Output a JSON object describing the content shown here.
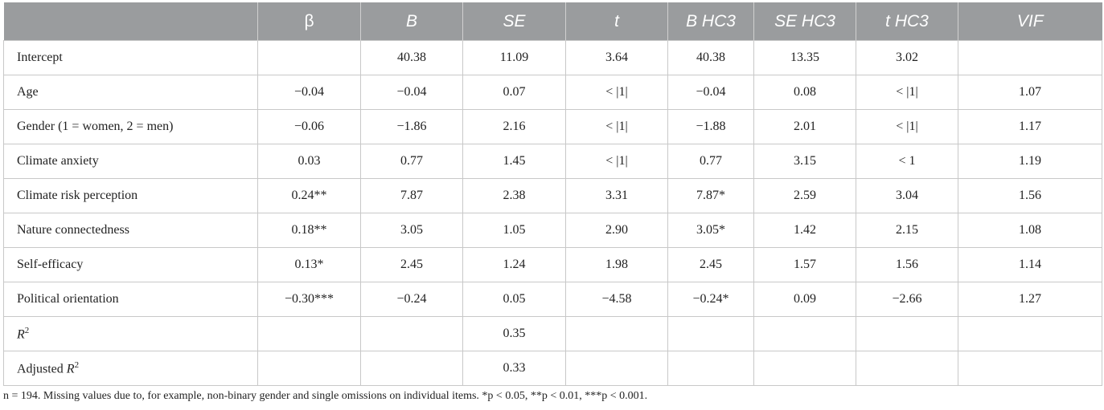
{
  "table": {
    "columns": [
      "",
      "β",
      "B",
      "SE",
      "t",
      "B HC3",
      "SE HC3",
      "t HC3",
      "VIF"
    ],
    "rows": [
      {
        "label": "Intercept",
        "cells": [
          "",
          "40.38",
          "11.09",
          "3.64",
          "40.38",
          "13.35",
          "3.02",
          ""
        ]
      },
      {
        "label": "Age",
        "cells": [
          "−0.04",
          "−0.04",
          "0.07",
          "< |1|",
          "−0.04",
          "0.08",
          "< |1|",
          "1.07"
        ]
      },
      {
        "label": "Gender (1 = women, 2 = men)",
        "cells": [
          "−0.06",
          "−1.86",
          "2.16",
          "< |1|",
          "−1.88",
          "2.01",
          "< |1|",
          "1.17"
        ]
      },
      {
        "label": "Climate anxiety",
        "cells": [
          "0.03",
          "0.77",
          "1.45",
          "< |1|",
          "0.77",
          "3.15",
          "< 1",
          "1.19"
        ]
      },
      {
        "label": "Climate risk perception",
        "cells": [
          "0.24**",
          "7.87",
          "2.38",
          "3.31",
          "7.87*",
          "2.59",
          "3.04",
          "1.56"
        ]
      },
      {
        "label": "Nature connectedness",
        "cells": [
          "0.18**",
          "3.05",
          "1.05",
          "2.90",
          "3.05*",
          "1.42",
          "2.15",
          "1.08"
        ]
      },
      {
        "label": "Self-efficacy",
        "cells": [
          "0.13*",
          "2.45",
          "1.24",
          "1.98",
          "2.45",
          "1.57",
          "1.56",
          "1.14"
        ]
      },
      {
        "label": "Political orientation",
        "cells": [
          "−0.30***",
          "−0.24",
          "0.05",
          "−4.58",
          "−0.24*",
          "0.09",
          "−2.66",
          "1.27"
        ]
      }
    ],
    "r2": {
      "label_base": "R",
      "label_sup": "2",
      "se_value": "0.35"
    },
    "adj_r2": {
      "label_prefix": "Adjusted ",
      "label_base": "R",
      "label_sup": "2",
      "se_value": "0.33"
    }
  },
  "footnote": "n = 194. Missing values due to, for example, non-binary gender and single omissions on individual items. *p < 0.05, **p < 0.01, ***p < 0.001."
}
